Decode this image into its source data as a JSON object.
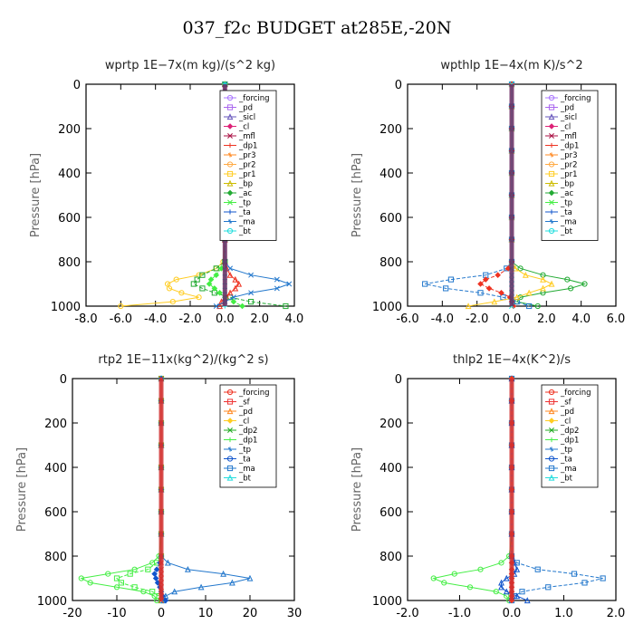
{
  "page_title": "037_f2c  BUDGET at285E,-20N",
  "colors": {
    "forcing": "#aa77ff",
    "pd": "#aa66ee",
    "sicl": "#6655bb",
    "cl": "#dd2277",
    "mfl": "#aa1144",
    "dp1": "#ee3322",
    "pr3": "#ff8822",
    "pr2": "#ffaa44",
    "pr1": "#ffcc22",
    "bp": "#ccbb00",
    "ac": "#22aa33",
    "tp": "#44ee44",
    "ta": "#1155cc",
    "ma": "#2277cc",
    "bt": "#22dddd",
    "sf": "#ee3333",
    "dp2": "#22aa22"
  },
  "chart_data": [
    {
      "type": "line",
      "title": "wprtp   1E−7x(m kg)/(s^2 kg)",
      "ylabel": "Pressure [hPa]",
      "xlim": [
        -8,
        4
      ],
      "ylim": [
        1000,
        0
      ],
      "xticks": [
        "-8.0",
        "-6.0",
        "-4.0",
        "-2.0",
        "0.0",
        "2.0",
        "4.0"
      ],
      "xtick_values": [
        -8,
        -6,
        -4,
        -2,
        0,
        2,
        4
      ],
      "yticks": [
        "0",
        "200",
        "400",
        "600",
        "800",
        "1000"
      ],
      "ytick_values": [
        0,
        200,
        400,
        600,
        800,
        1000
      ],
      "legend": [
        "_forcing",
        "_pd",
        "_sicl",
        "_cl",
        "_mfl",
        "_dp1",
        "_pr3",
        "_pr2",
        "_pr1",
        "_bp",
        "_ac",
        "_tp",
        "_ta",
        "_ma",
        "_bt"
      ],
      "legend_colors": [
        "forcing",
        "pd",
        "sicl",
        "cl",
        "mfl",
        "dp1",
        "pr3",
        "pr2",
        "pr1",
        "bp",
        "ac",
        "tp",
        "ta",
        "ma",
        "bt"
      ],
      "legend_placement": "top-right",
      "pressure": [
        0,
        100,
        200,
        300,
        400,
        500,
        600,
        700,
        800,
        830,
        860,
        880,
        900,
        920,
        940,
        960,
        980,
        1000
      ],
      "series": [
        {
          "name": "_pr1",
          "color": "pr1",
          "values": [
            0,
            0,
            0,
            0,
            0,
            0,
            0,
            0,
            -0.1,
            -0.5,
            -1.5,
            -2.8,
            -3.3,
            -3.2,
            -2.5,
            -1.5,
            -3.0,
            -6.0
          ]
        },
        {
          "name": "_ac",
          "color": "ac",
          "values": [
            0,
            0,
            0,
            0,
            0,
            0,
            0,
            0,
            0,
            -0.5,
            -1.3,
            -1.6,
            -1.8,
            -1.3,
            -0.6,
            0.3,
            1.5,
            3.5
          ]
        },
        {
          "name": "_dp1",
          "color": "dp1",
          "values": [
            0,
            0,
            0,
            0,
            0,
            0,
            0,
            0,
            0,
            0.1,
            0.3,
            0.6,
            0.8,
            0.6,
            0.3,
            0.1,
            -0.2,
            -0.3
          ]
        },
        {
          "name": "_tp",
          "color": "tp",
          "values": [
            0,
            0,
            0,
            0,
            0,
            0,
            0,
            0,
            0,
            -0.2,
            -0.5,
            -0.8,
            -0.9,
            -0.6,
            -0.3,
            0.0,
            0.5,
            1.0
          ]
        },
        {
          "name": "_ma",
          "color": "ma",
          "values": [
            0,
            0,
            0,
            0,
            0,
            0,
            0,
            0,
            0,
            0.3,
            1.5,
            3.0,
            3.7,
            3.0,
            1.5,
            0.5,
            0.0,
            -0.5
          ]
        },
        {
          "name": "_bt",
          "color": "bt",
          "values": [
            0,
            0,
            0,
            0,
            0,
            0,
            0,
            0,
            0,
            0,
            0,
            0,
            0,
            0,
            0,
            0,
            0,
            0
          ]
        }
      ]
    },
    {
      "type": "line",
      "title": "wpthlp   1E−4x(m K)/s^2",
      "ylabel": "Pressure [hPa]",
      "xlim": [
        -6,
        6
      ],
      "ylim": [
        1000,
        0
      ],
      "xticks": [
        "-6.0",
        "-4.0",
        "-2.0",
        "0.0",
        "2.0",
        "4.0",
        "6.0"
      ],
      "xtick_values": [
        -6,
        -4,
        -2,
        0,
        2,
        4,
        6
      ],
      "yticks": [
        "0",
        "200",
        "400",
        "600",
        "800",
        "1000"
      ],
      "ytick_values": [
        0,
        200,
        400,
        600,
        800,
        1000
      ],
      "legend": [
        "_forcing",
        "_pd",
        "_sicl",
        "_cl",
        "_mfl",
        "_dp1",
        "_pr3",
        "_pr2",
        "_pr1",
        "_bp",
        "_ac",
        "_tp",
        "_ta",
        "_ma",
        "_bt"
      ],
      "legend_colors": [
        "forcing",
        "pd",
        "sicl",
        "cl",
        "mfl",
        "dp1",
        "pr3",
        "pr2",
        "pr1",
        "bp",
        "ac",
        "tp",
        "ta",
        "ma",
        "bt"
      ],
      "legend_placement": "top-right",
      "pressure": [
        0,
        100,
        200,
        300,
        400,
        500,
        600,
        700,
        800,
        830,
        860,
        880,
        900,
        920,
        940,
        960,
        980,
        1000
      ],
      "series": [
        {
          "name": "_ac",
          "color": "ac",
          "values": [
            0,
            0,
            0,
            0,
            0,
            0,
            0,
            0,
            0,
            0.5,
            1.8,
            3.2,
            4.2,
            3.4,
            1.8,
            0.5,
            0.3,
            1.5
          ]
        },
        {
          "name": "_ma",
          "color": "ma",
          "values": [
            0,
            0,
            0,
            0,
            0,
            0,
            0,
            0,
            0,
            -0.3,
            -1.5,
            -3.5,
            -5.0,
            -3.8,
            -1.8,
            -0.5,
            0.3,
            1.0
          ]
        },
        {
          "name": "_pr1",
          "color": "pr1",
          "values": [
            0,
            0,
            0,
            0,
            0,
            0,
            0,
            0,
            0,
            0.2,
            0.8,
            1.8,
            2.3,
            1.8,
            1.0,
            0.3,
            -1.0,
            -2.5
          ]
        },
        {
          "name": "_dp1",
          "color": "dp1",
          "values": [
            0,
            0,
            0,
            0,
            0,
            0,
            0,
            0,
            0,
            -0.2,
            -0.8,
            -1.5,
            -1.8,
            -1.3,
            -0.6,
            -0.1,
            0.0,
            0.1
          ]
        },
        {
          "name": "_bt",
          "color": "bt",
          "values": [
            0,
            0,
            0,
            0,
            0,
            0,
            0,
            0,
            0,
            0,
            0,
            0,
            0,
            0,
            0,
            0,
            0,
            0
          ]
        }
      ]
    },
    {
      "type": "line",
      "title": "rtp2   1E−11x(kg^2)/(kg^2 s)",
      "ylabel": "Pressure [hPa]",
      "xlim": [
        -20,
        30
      ],
      "ylim": [
        1000,
        0
      ],
      "xticks": [
        "-20",
        "-10",
        "0",
        "10",
        "20",
        "30"
      ],
      "xtick_values": [
        -20,
        -10,
        0,
        10,
        20,
        30
      ],
      "yticks": [
        "0",
        "200",
        "400",
        "600",
        "800",
        "1000"
      ],
      "ytick_values": [
        0,
        200,
        400,
        600,
        800,
        1000
      ],
      "legend": [
        "_forcing",
        "_sf",
        "_pd",
        "_cl",
        "_dp2",
        "_dp1",
        "_tp",
        "_ta",
        "_ma",
        "_bt"
      ],
      "legend_colors": [
        "dp1",
        "sf",
        "pr3",
        "pr1",
        "dp2",
        "tp",
        "ma",
        "ta",
        "ma",
        "bt"
      ],
      "legend_placement": "top-right",
      "pressure": [
        0,
        100,
        200,
        300,
        400,
        500,
        600,
        700,
        800,
        830,
        860,
        880,
        900,
        920,
        940,
        960,
        980,
        1000
      ],
      "series": [
        {
          "name": "_tp",
          "color": "tp",
          "values": [
            0,
            0,
            0,
            0,
            0,
            0,
            0,
            0,
            -0.5,
            -2.0,
            -6.0,
            -12.0,
            -18.0,
            -16.0,
            -10.0,
            -4.0,
            -1.5,
            -1.0
          ]
        },
        {
          "name": "_dp1",
          "color": "tp",
          "values": [
            0,
            0,
            0,
            0,
            0,
            0,
            0,
            0,
            0,
            -1.0,
            -3.0,
            -7.0,
            -10.0,
            -9.0,
            -6.0,
            -2.0,
            -0.5,
            0
          ]
        },
        {
          "name": "_ma",
          "color": "ma",
          "values": [
            0,
            0,
            0,
            0,
            0,
            0,
            0,
            0,
            0,
            1.5,
            6.0,
            14.0,
            20.0,
            16.0,
            9.0,
            3.0,
            1.0,
            0.5
          ]
        },
        {
          "name": "_ta",
          "color": "ta",
          "values": [
            0,
            0,
            0,
            0,
            0,
            0,
            0,
            0,
            0,
            -0.3,
            -1.0,
            -1.5,
            -1.2,
            -0.8,
            -0.3,
            0.0,
            0.3,
            1.0
          ]
        },
        {
          "name": "_forcing",
          "color": "dp1",
          "values": [
            0,
            0,
            0,
            0,
            0,
            0,
            0,
            0,
            0,
            0,
            0,
            0,
            0,
            0,
            0,
            0,
            0,
            0
          ]
        }
      ]
    },
    {
      "type": "line",
      "title": "thlp2   1E−4x(K^2)/s",
      "ylabel": "Pressure [hPa]",
      "xlim": [
        -2,
        2
      ],
      "ylim": [
        1000,
        0
      ],
      "xticks": [
        "-2.0",
        "-1.0",
        "0.0",
        "1.0",
        "2.0"
      ],
      "xtick_values": [
        -2,
        -1,
        0,
        1,
        2
      ],
      "yticks": [
        "0",
        "200",
        "400",
        "600",
        "800",
        "1000"
      ],
      "ytick_values": [
        0,
        200,
        400,
        600,
        800,
        1000
      ],
      "legend": [
        "_forcing",
        "_sf",
        "_pd",
        "_cl",
        "_dp2",
        "_dp1",
        "_tp",
        "_ta",
        "_ma",
        "_bt"
      ],
      "legend_colors": [
        "dp1",
        "sf",
        "pr3",
        "pr1",
        "dp2",
        "tp",
        "ma",
        "ta",
        "ma",
        "bt"
      ],
      "legend_placement": "top-right",
      "pressure": [
        0,
        100,
        200,
        300,
        400,
        500,
        600,
        700,
        800,
        830,
        860,
        880,
        900,
        920,
        940,
        960,
        980,
        1000
      ],
      "series": [
        {
          "name": "_tp",
          "color": "tp",
          "values": [
            0,
            0,
            0,
            0,
            0,
            0,
            0,
            0,
            -0.05,
            -0.2,
            -0.6,
            -1.1,
            -1.5,
            -1.3,
            -0.8,
            -0.3,
            -0.1,
            -0.05
          ]
        },
        {
          "name": "_ma",
          "color": "ma",
          "values": [
            0,
            0,
            0,
            0,
            0,
            0,
            0,
            0,
            0,
            0.1,
            0.5,
            1.2,
            1.75,
            1.4,
            0.7,
            0.2,
            0.05,
            0.0
          ]
        },
        {
          "name": "_ta",
          "color": "ta",
          "values": [
            0,
            0,
            0,
            0,
            0,
            0,
            0,
            0,
            0,
            0.05,
            0.1,
            0.05,
            -0.1,
            -0.2,
            -0.2,
            -0.1,
            0.1,
            0.3
          ]
        },
        {
          "name": "_forcing",
          "color": "dp1",
          "values": [
            0,
            0,
            0,
            0,
            0,
            0,
            0,
            0,
            0,
            0,
            0,
            0,
            0,
            0,
            0,
            0,
            0,
            0
          ]
        }
      ]
    }
  ]
}
